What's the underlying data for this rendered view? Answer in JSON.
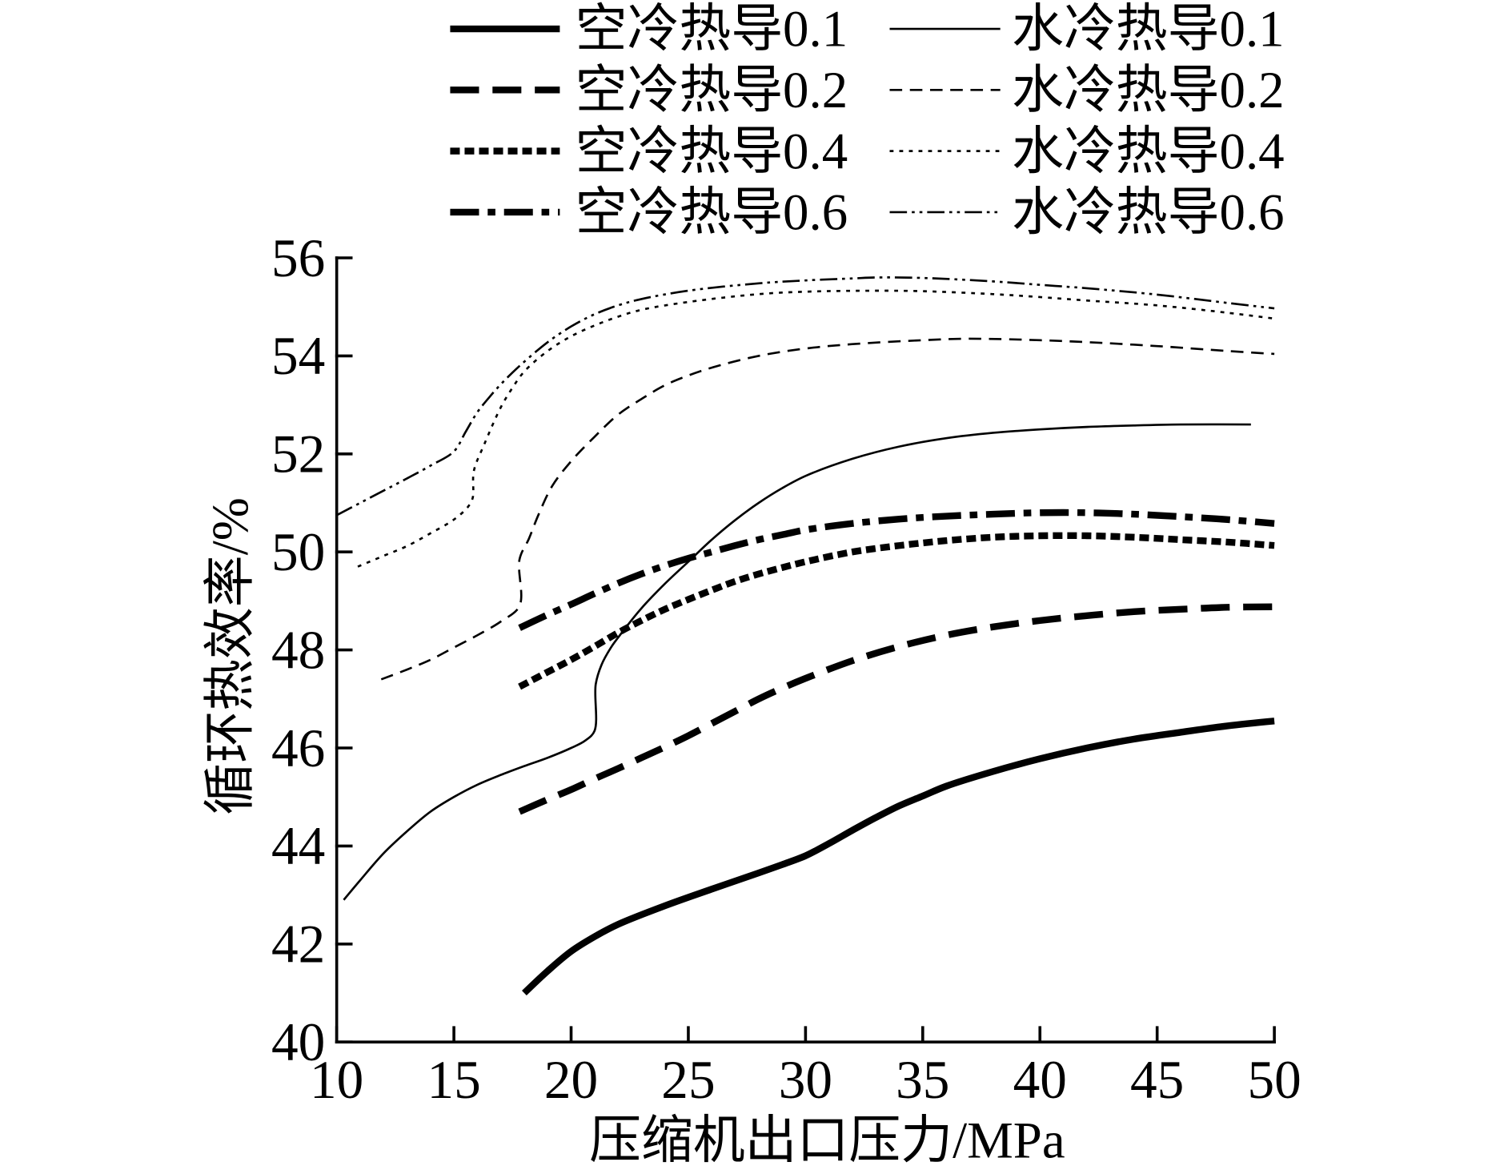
{
  "chart_data": {
    "type": "line",
    "xlabel": "压缩机出口压力/MPa",
    "ylabel": "循环热效率/%",
    "xlim": [
      10,
      50
    ],
    "ylim": [
      40,
      56
    ],
    "xticks": [
      10,
      15,
      20,
      25,
      30,
      35,
      40,
      45,
      50
    ],
    "yticks": [
      40,
      42,
      44,
      46,
      48,
      50,
      52,
      54,
      56
    ],
    "grid": false,
    "legend_position": "top",
    "line_color": "#000000",
    "series": [
      {
        "name": "空冷热导0.1",
        "line_style": "solid",
        "line_weight": "thick",
        "x": [
          18,
          19,
          20,
          21,
          22,
          24,
          26,
          28,
          29,
          30,
          31,
          32,
          33,
          34,
          35,
          36,
          38,
          40,
          42,
          44,
          46,
          48,
          50
        ],
        "y": [
          41.0,
          41.45,
          41.85,
          42.15,
          42.4,
          42.78,
          43.12,
          43.45,
          43.62,
          43.8,
          44.05,
          44.32,
          44.58,
          44.82,
          45.02,
          45.22,
          45.52,
          45.78,
          46.0,
          46.18,
          46.32,
          46.45,
          46.55
        ]
      },
      {
        "name": "水冷热导0.1",
        "line_style": "solid",
        "line_weight": "thin",
        "x": [
          10.3,
          11,
          12,
          13,
          14,
          15,
          16,
          17,
          18,
          19,
          20,
          20.6,
          21.0,
          21.05,
          21.3,
          21.7,
          22,
          23,
          24,
          25,
          26,
          27,
          28,
          29,
          30,
          32,
          34,
          36,
          38,
          40,
          42,
          44,
          46,
          49
        ],
        "y": [
          42.9,
          43.3,
          43.85,
          44.3,
          44.7,
          45.0,
          45.25,
          45.45,
          45.63,
          45.8,
          46.0,
          46.15,
          46.35,
          47.3,
          47.7,
          48.05,
          48.25,
          48.85,
          49.35,
          49.8,
          50.25,
          50.65,
          51.0,
          51.3,
          51.55,
          51.9,
          52.15,
          52.32,
          52.43,
          52.5,
          52.55,
          52.58,
          52.6,
          52.6
        ]
      },
      {
        "name": "空冷热导0.2",
        "line_style": "dashed",
        "line_weight": "thick",
        "x": [
          17.8,
          19,
          20,
          21,
          22,
          23,
          24,
          25,
          26,
          27,
          28,
          29,
          30,
          32,
          34,
          36,
          38,
          40,
          42,
          44,
          46,
          48,
          50
        ],
        "y": [
          44.7,
          44.95,
          45.15,
          45.37,
          45.58,
          45.8,
          46.02,
          46.25,
          46.5,
          46.75,
          47.0,
          47.22,
          47.42,
          47.78,
          48.07,
          48.3,
          48.47,
          48.6,
          48.7,
          48.78,
          48.83,
          48.87,
          48.88
        ]
      },
      {
        "name": "水冷热导0.2",
        "line_style": "dashed",
        "line_weight": "thin",
        "x": [
          11.9,
          13,
          14,
          15,
          16,
          17,
          17.8,
          17.8,
          18.2,
          18.6,
          19.2,
          20,
          21,
          22,
          23,
          24,
          25,
          26,
          28,
          30,
          32,
          35,
          37,
          40,
          42,
          45,
          48,
          50
        ],
        "y": [
          47.4,
          47.6,
          47.8,
          48.05,
          48.3,
          48.58,
          48.9,
          49.85,
          50.27,
          50.75,
          51.35,
          51.85,
          52.35,
          52.8,
          53.12,
          53.4,
          53.6,
          53.76,
          54.0,
          54.15,
          54.24,
          54.32,
          54.35,
          54.32,
          54.28,
          54.2,
          54.1,
          54.04
        ]
      },
      {
        "name": "空冷热导0.4",
        "line_style": "dotted",
        "line_weight": "thick",
        "x": [
          17.8,
          19,
          20,
          21,
          22,
          23,
          24,
          25,
          26,
          27,
          28,
          29,
          30,
          32,
          34,
          36,
          38,
          40,
          42,
          44,
          46,
          48,
          50
        ],
        "y": [
          47.25,
          47.55,
          47.8,
          48.07,
          48.35,
          48.6,
          48.83,
          49.03,
          49.22,
          49.4,
          49.55,
          49.68,
          49.8,
          50.0,
          50.13,
          50.23,
          50.3,
          50.33,
          50.33,
          50.3,
          50.25,
          50.2,
          50.13
        ]
      },
      {
        "name": "水冷热导0.4",
        "line_style": "dotted",
        "line_weight": "thin",
        "x": [
          10.9,
          12,
          13,
          14,
          15,
          15.6,
          15.8,
          15.85,
          16.3,
          17,
          17.5,
          18,
          19,
          20,
          21,
          22,
          23,
          25,
          28,
          30,
          33,
          35,
          38,
          40,
          42,
          45,
          48,
          50
        ],
        "y": [
          49.7,
          49.92,
          50.12,
          50.38,
          50.66,
          50.92,
          51.1,
          51.65,
          52.2,
          52.95,
          53.35,
          53.68,
          54.1,
          54.4,
          54.62,
          54.8,
          54.94,
          55.1,
          55.26,
          55.31,
          55.33,
          55.32,
          55.26,
          55.2,
          55.13,
          55.03,
          54.88,
          54.76
        ]
      },
      {
        "name": "空冷热导0.6",
        "line_style": "dash-dot",
        "line_weight": "thick",
        "x": [
          17.8,
          19,
          20,
          21,
          22,
          23,
          24,
          25,
          26,
          27,
          28,
          29,
          30,
          32,
          34,
          36,
          38,
          40,
          42,
          44,
          46,
          48,
          50
        ],
        "y": [
          48.45,
          48.72,
          48.93,
          49.15,
          49.36,
          49.55,
          49.72,
          49.87,
          50.0,
          50.13,
          50.25,
          50.35,
          50.45,
          50.58,
          50.67,
          50.73,
          50.77,
          50.8,
          50.8,
          50.77,
          50.72,
          50.66,
          50.58
        ]
      },
      {
        "name": "水冷热导0.6",
        "line_style": "dash-dot-dot",
        "line_weight": "thin",
        "x": [
          10,
          11,
          12,
          13,
          14,
          15,
          15.5,
          16,
          16.5,
          17,
          17.5,
          18,
          19,
          20,
          21,
          22,
          23,
          25,
          28,
          30,
          32,
          33,
          35,
          38,
          40,
          42,
          45,
          48,
          50
        ],
        "y": [
          50.75,
          51.0,
          51.25,
          51.5,
          51.76,
          52.05,
          52.45,
          52.85,
          53.15,
          53.42,
          53.66,
          53.88,
          54.28,
          54.6,
          54.85,
          55.03,
          55.16,
          55.33,
          55.48,
          55.54,
          55.58,
          55.6,
          55.59,
          55.52,
          55.45,
          55.38,
          55.25,
          55.08,
          54.97
        ]
      }
    ]
  }
}
